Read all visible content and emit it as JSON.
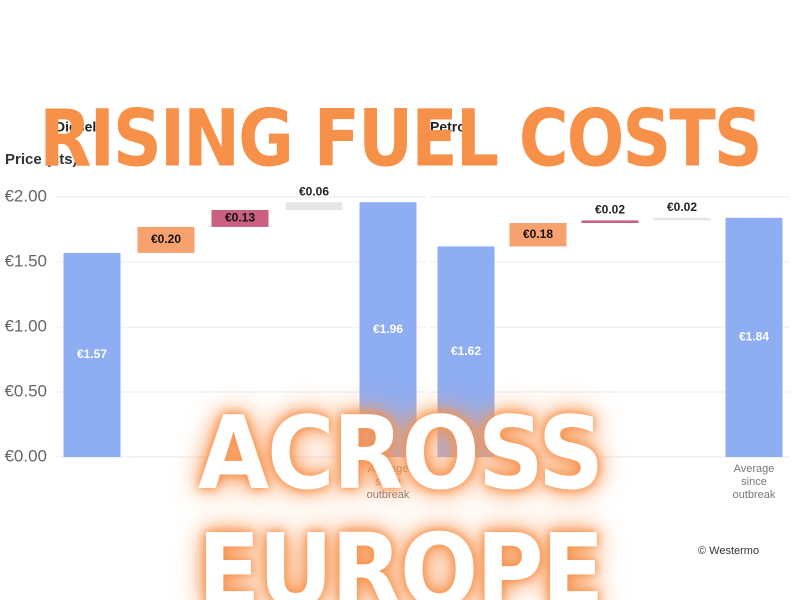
{
  "headline": "RISING FUEL COSTS",
  "subheadline": "ACROSS EUROPE",
  "credit": "© Westermo",
  "chart_data": [
    {
      "type": "waterfall",
      "title": "Diesel",
      "y_label": "Price (cts)",
      "categories": [
        null,
        null,
        null,
        null,
        "Average since outbreak"
      ],
      "measure": [
        "absolute",
        "relative",
        "relative",
        "relative",
        "total"
      ],
      "values": [
        1.57,
        0.2,
        0.13,
        0.06,
        1.96
      ],
      "value_labels": [
        "€1.57",
        "€0.20",
        "€0.13",
        "€0.06",
        "€1.96"
      ],
      "colors": [
        "#8fadf2",
        "#f7a26e",
        "#c9607f",
        "#e6e6e6",
        "#8fadf2"
      ],
      "ylim": [
        0,
        2
      ],
      "yticks": [
        {
          "value": 0,
          "label": "€0.00"
        },
        {
          "value": 0.5,
          "label": "€0.50"
        },
        {
          "value": 1,
          "label": "€1.00"
        },
        {
          "value": 1.5,
          "label": "€1.50"
        },
        {
          "value": 2,
          "label": "€2.00"
        }
      ],
      "grid": true
    },
    {
      "type": "waterfall",
      "title": "Petrol",
      "categories": [
        null,
        null,
        null,
        null,
        "Average since outbreak"
      ],
      "measure": [
        "absolute",
        "relative",
        "relative",
        "relative",
        "total"
      ],
      "values": [
        1.62,
        0.18,
        0.02,
        0.02,
        1.84
      ],
      "value_labels": [
        "€1.62",
        "€0.18",
        "€0.02",
        "€0.02",
        "€1.84"
      ],
      "colors": [
        "#8fadf2",
        "#f7a26e",
        "#c9607f",
        "#e6e6e6",
        "#8fadf2"
      ],
      "sharey": true,
      "grid": true
    }
  ]
}
